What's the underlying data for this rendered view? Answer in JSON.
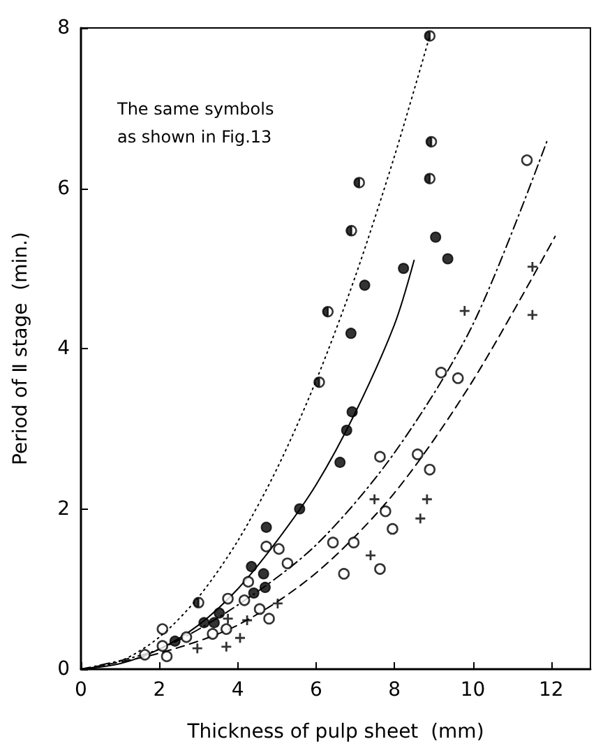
{
  "chart_data": {
    "type": "scatter",
    "xlabel": "Thickness of pulp sheet  (mm)",
    "ylabel": "Period of Ⅱ stage  (min.)",
    "annotations": [
      "The same symbols\nas shown in Fig.13"
    ],
    "xlim": [
      0,
      13
    ],
    "xticks": [
      0,
      2,
      4,
      6,
      8,
      10,
      12
    ],
    "ylim": [
      0,
      8
    ],
    "yticks": [
      0,
      2,
      4,
      6,
      8
    ],
    "grid": false,
    "series": [
      {
        "marker": "half-circle",
        "color": "#000000",
        "x": [
          8.9,
          8.94,
          8.9,
          7.1,
          6.9,
          6.3,
          6.08,
          3.0
        ],
        "values": [
          7.9,
          6.58,
          6.12,
          6.07,
          5.47,
          4.46,
          3.58,
          0.83
        ]
      },
      {
        "marker": "circle",
        "color": "#000000",
        "x": [
          9.05,
          9.36,
          8.23,
          7.24,
          6.89,
          6.92,
          6.78,
          6.61,
          5.58,
          4.73,
          4.66,
          4.35,
          4.7,
          4.41,
          3.53,
          3.4,
          3.14,
          2.4
        ],
        "values": [
          5.39,
          5.12,
          5.0,
          4.79,
          4.19,
          3.21,
          2.98,
          2.58,
          2.0,
          1.77,
          1.19,
          1.28,
          1.02,
          0.95,
          0.7,
          0.58,
          0.58,
          0.35
        ]
      },
      {
        "marker": "open-circle",
        "color": "#000000",
        "x": [
          11.38,
          9.19,
          9.62,
          7.63,
          8.59,
          8.9,
          7.77,
          7.95,
          7.63,
          6.71,
          6.43,
          6.96,
          4.73,
          5.05,
          5.27,
          4.27,
          3.75,
          4.17,
          4.56,
          4.8,
          3.36,
          3.71,
          2.08,
          2.69,
          2.08,
          1.63,
          2.19
        ],
        "values": [
          6.35,
          3.7,
          3.63,
          2.65,
          2.68,
          2.49,
          1.97,
          1.75,
          1.25,
          1.19,
          1.58,
          1.58,
          1.53,
          1.5,
          1.32,
          1.09,
          0.88,
          0.86,
          0.75,
          0.63,
          0.44,
          0.5,
          0.5,
          0.4,
          0.29,
          0.18,
          0.16
        ]
      },
      {
        "marker": "cross",
        "color": "#000000",
        "x": [
          11.52,
          9.79,
          11.52,
          7.49,
          8.83,
          8.66,
          7.39,
          5.02,
          4.24,
          3.75,
          4.06,
          3.71,
          2.97
        ],
        "values": [
          5.02,
          4.47,
          4.42,
          2.12,
          2.12,
          1.88,
          1.42,
          0.82,
          0.61,
          0.63,
          0.39,
          0.28,
          0.26
        ]
      },
      {
        "type": "line",
        "line_style": "dotted",
        "color": "#000000",
        "x": [
          0,
          1,
          2,
          3,
          4,
          5,
          6,
          7,
          8,
          8.9
        ],
        "values": [
          0,
          0.1,
          0.4,
          0.9,
          1.6,
          2.5,
          3.6,
          4.9,
          6.4,
          7.9
        ]
      },
      {
        "type": "line",
        "line_style": "solid",
        "color": "#000000",
        "x": [
          0,
          1,
          2,
          3,
          4,
          5,
          6,
          7,
          8,
          8.5
        ],
        "values": [
          0,
          0.07,
          0.25,
          0.55,
          1.0,
          1.6,
          2.3,
          3.2,
          4.3,
          5.1
        ]
      },
      {
        "type": "line",
        "line_style": "dashdot",
        "color": "#000000",
        "x": [
          0,
          2,
          4,
          6,
          8,
          10,
          11.9
        ],
        "values": [
          0,
          0.25,
          0.8,
          1.55,
          2.7,
          4.3,
          6.6
        ]
      },
      {
        "type": "line",
        "line_style": "dashed",
        "color": "#000000",
        "x": [
          0,
          2,
          4,
          6,
          8,
          10,
          12.1
        ],
        "values": [
          0,
          0.2,
          0.55,
          1.2,
          2.2,
          3.6,
          5.4
        ]
      }
    ]
  }
}
